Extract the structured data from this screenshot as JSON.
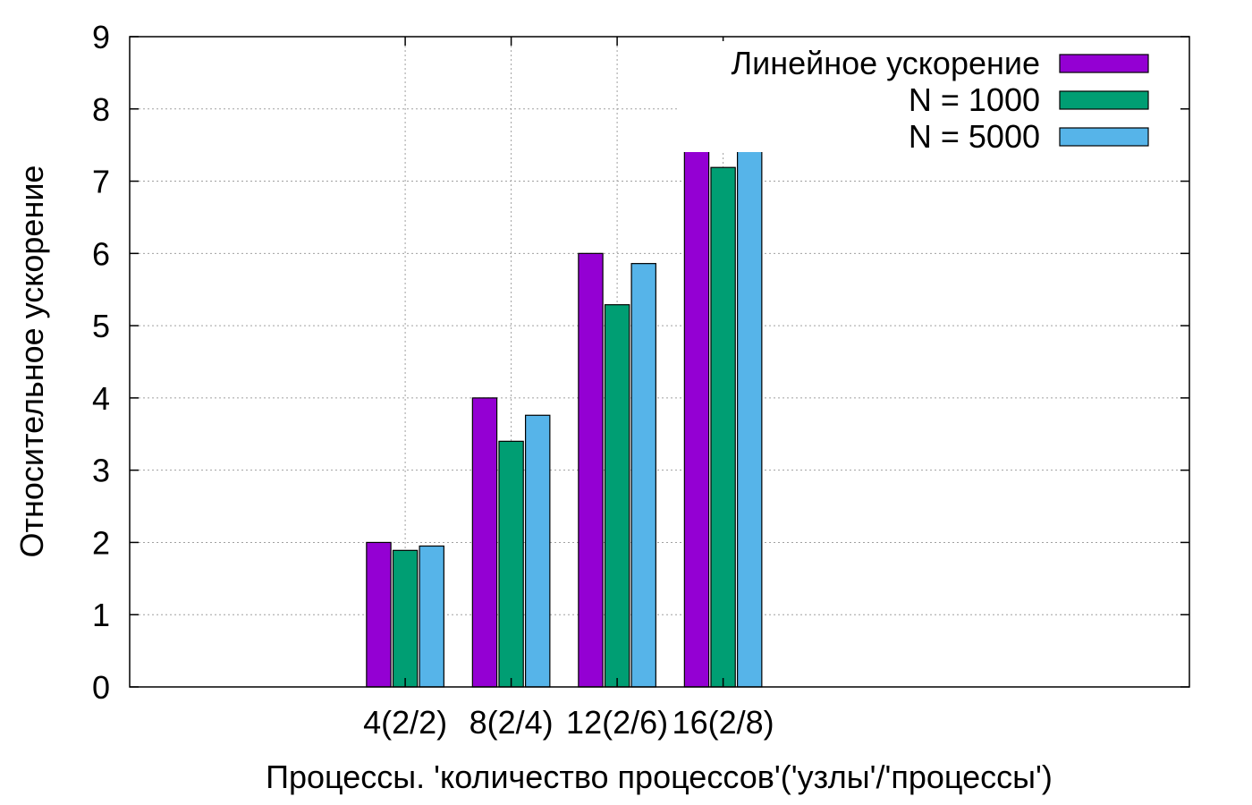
{
  "chart_data": {
    "type": "bar",
    "title": "",
    "xlabel": "Процессы. 'количество процессов'('узлы'/'процессы')",
    "ylabel": "Относительное ускорение",
    "categories": [
      "4(2/2)",
      "8(2/4)",
      "12(2/6)",
      "16(2/8)"
    ],
    "ylim": [
      0,
      9
    ],
    "yticks": [
      "0",
      "1",
      "2",
      "3",
      "4",
      "5",
      "6",
      "7",
      "8",
      "9"
    ],
    "grid": true,
    "legend_position": "top-right",
    "series": [
      {
        "name": "Линейное ускорение",
        "color": "#9400d3",
        "values": [
          2,
          4,
          6,
          8
        ]
      },
      {
        "name": "N = 1000",
        "color": "#009e73",
        "values": [
          1.89,
          3.4,
          5.29,
          7.19
        ]
      },
      {
        "name": "N = 5000",
        "color": "#56b4e9",
        "values": [
          1.95,
          3.76,
          5.86,
          7.42
        ]
      }
    ]
  }
}
